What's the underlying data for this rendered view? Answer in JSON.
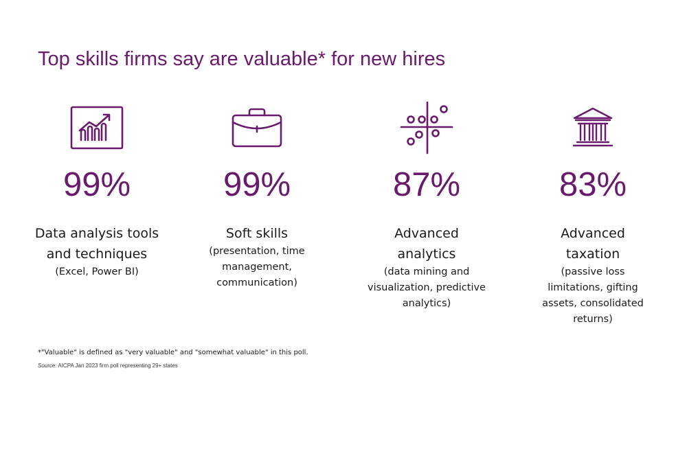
{
  "title": "Top skills firms say are valuable* for new hires",
  "accent_color": "#6a1a6c",
  "stats": [
    {
      "icon": "chart-growth-icon",
      "percent": "99%",
      "label_lines": [
        "Data analysis tools",
        "and techniques"
      ],
      "detail_lines": [
        "(Excel, Power BI)"
      ]
    },
    {
      "icon": "briefcase-icon",
      "percent": "99%",
      "label_lines": [
        "Soft skills"
      ],
      "detail_lines": [
        "(presentation, time",
        "management,",
        "communication)"
      ]
    },
    {
      "icon": "scatter-quadrant-icon",
      "percent": "87%",
      "label_lines": [
        "Advanced",
        "analytics"
      ],
      "detail_lines": [
        "(data mining and",
        "visualization, predictive",
        "analytics)"
      ]
    },
    {
      "icon": "bank-building-icon",
      "percent": "83%",
      "label_lines": [
        "Advanced",
        "taxation"
      ],
      "detail_lines": [
        "(passive loss",
        "limitations, gifting",
        "assets, consolidated",
        "returns)"
      ]
    }
  ],
  "footnote": "*\"Valuable\" is defined as \"very valuable\" and \"somewhat valuable\" in this poll.",
  "source": {
    "label": "Source:",
    "text": " AICPA Jan 2023 firm poll representing 29+ states"
  }
}
